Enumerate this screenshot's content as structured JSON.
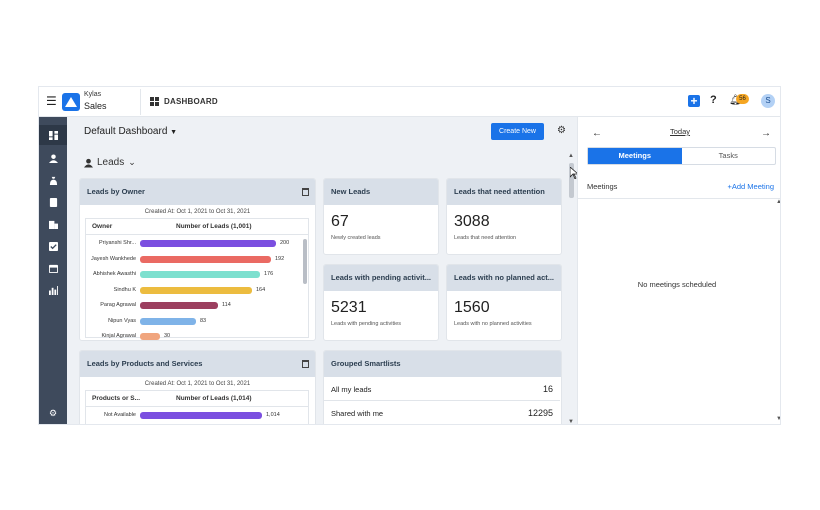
{
  "brand": {
    "top": "Kylas",
    "main": "Sales"
  },
  "header": {
    "section": "DASHBOARD",
    "notifications": "56",
    "avatar": "S"
  },
  "dashboard": {
    "title": "Default Dashboard",
    "create_label": "Create New",
    "entity": "Leads"
  },
  "owner_card": {
    "title": "Leads by Owner",
    "created": "Created At: Oct 1, 2021 to Oct 31, 2021",
    "col1": "Owner",
    "col2": "Number of Leads (1,001)",
    "max": 200,
    "rows": [
      {
        "name": "Priyanshi Shr...",
        "value": 200,
        "color": "#7b4fe0"
      },
      {
        "name": "Jayesh Wankhede",
        "value": 192,
        "color": "#ea6a63"
      },
      {
        "name": "Abhishek Awasthi",
        "value": 176,
        "color": "#7de0cf"
      },
      {
        "name": "Sindhu K",
        "value": 164,
        "color": "#ecbc3f"
      },
      {
        "name": "Parag Agrawal",
        "value": 114,
        "color": "#9c3f5f"
      },
      {
        "name": "Nipun Vyas",
        "value": 83,
        "color": "#7fb3e8"
      },
      {
        "name": "Kinjal Agrawal",
        "value": 30,
        "color": "#f0a57e"
      }
    ]
  },
  "products_card": {
    "title": "Leads by Products and Services",
    "created": "Created At: Oct 1, 2021 to Oct 31, 2021",
    "col1": "Products or S...",
    "col2": "Number of Leads (1,014)",
    "max": 1014,
    "rows": [
      {
        "name": "Not Available",
        "value": 1014,
        "value_label": "1,014",
        "color": "#7b4fe0"
      }
    ]
  },
  "new_leads": {
    "title": "New Leads",
    "value": "67",
    "sub": "Newly created leads"
  },
  "attention": {
    "title": "Leads that need attention",
    "value": "3088",
    "sub": "Leads that need attention"
  },
  "pending": {
    "title": "Leads with pending activit...",
    "value": "5231",
    "sub": "Leads with pending activities"
  },
  "no_planned": {
    "title": "Leads with no planned act...",
    "value": "1560",
    "sub": "Leads with no planned activities"
  },
  "smartlists": {
    "title": "Grouped Smartlists",
    "rows": [
      {
        "name": "All my leads",
        "value": "16"
      },
      {
        "name": "Shared with me",
        "value": "12295"
      }
    ]
  },
  "right_panel": {
    "today": "Today",
    "tab_meetings": "Meetings",
    "tab_tasks": "Tasks",
    "meetings_label": "Meetings",
    "add_meeting": "Add Meeting",
    "empty": "No meetings scheduled"
  }
}
